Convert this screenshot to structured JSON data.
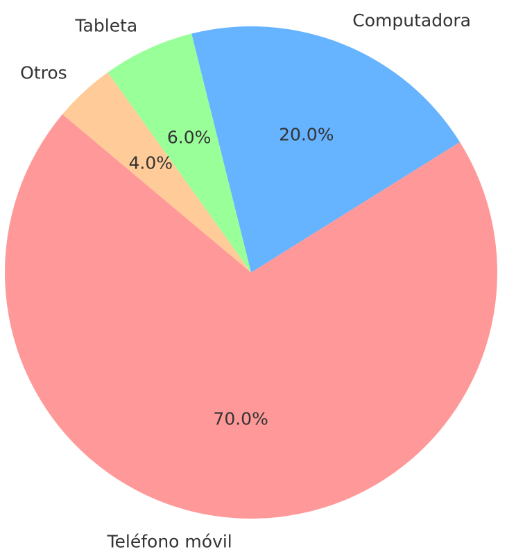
{
  "chart_data": {
    "type": "pie",
    "categories": [
      "Teléfono móvil",
      "Computadora",
      "Tableta",
      "Otros"
    ],
    "values": [
      70,
      20,
      6,
      4
    ],
    "value_labels": [
      "70.0%",
      "20.0%",
      "6.0%",
      "4.0%"
    ],
    "colors": [
      "#ff9999",
      "#66b3ff",
      "#99ff99",
      "#ffcc99"
    ]
  }
}
